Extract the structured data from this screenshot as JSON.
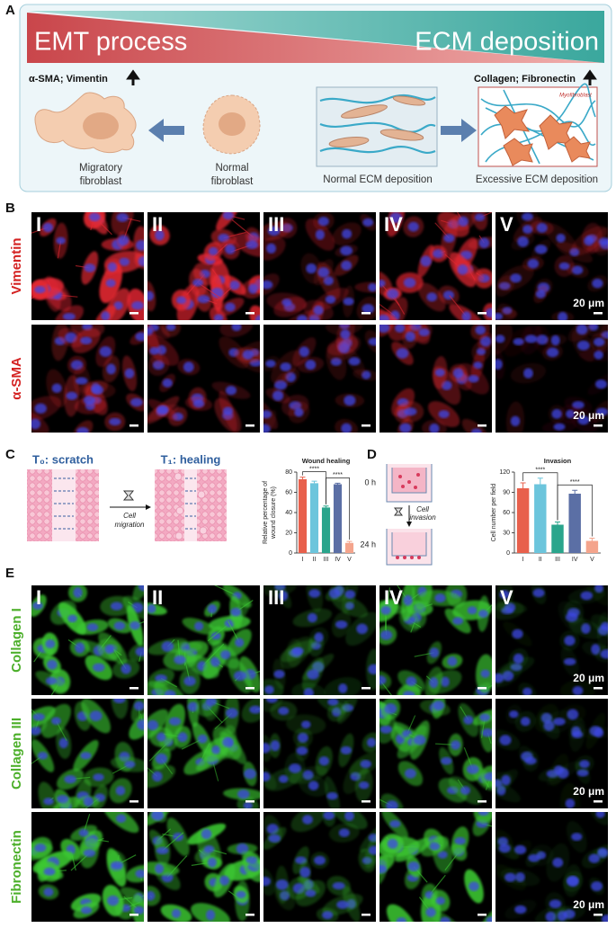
{
  "panel_a": {
    "label": "A",
    "left_banner": "EMT process",
    "right_banner": "ECM deposition",
    "left_markers": "α-SMA; Vimentin",
    "right_markers": "Collagen; Fibronectin",
    "cell_labels": [
      [
        "Migratory",
        "fibroblast"
      ],
      [
        "Normal",
        "fibroblast"
      ]
    ],
    "ecm_labels": [
      "Normal ECM deposition",
      "Excessive ECM deposition"
    ],
    "myofibroblast": "Myofibroblast"
  },
  "panel_b": {
    "label": "B",
    "groups": [
      "I",
      "II",
      "III",
      "IV",
      "V"
    ],
    "stains": [
      "Vimentin",
      "α-SMA"
    ],
    "scale": "20 μm"
  },
  "panel_c": {
    "label": "C",
    "before": "T₀: scratch",
    "after": "T₁: healing",
    "process": [
      "Cell",
      "migration"
    ],
    "chart": {
      "type": "bar",
      "title": "Wound healing",
      "y_label": [
        "Relative percentage of",
        "wound closure (%)"
      ],
      "categories": [
        "I",
        "II",
        "III",
        "IV",
        "V"
      ],
      "values": [
        73,
        69,
        45,
        68,
        10
      ],
      "errors": [
        2,
        2,
        1.5,
        1,
        1.5
      ],
      "colors": [
        "#e8604c",
        "#6cc5dc",
        "#2aa58c",
        "#5b6fa5",
        "#f4a48c"
      ],
      "ylim": [
        0,
        80
      ],
      "yticks": [
        0,
        20,
        40,
        60,
        80
      ],
      "comparisons": [
        {
          "label": "****",
          "bars": [
            "I",
            "III"
          ]
        },
        {
          "label": "****",
          "bars": [
            "III",
            "V"
          ]
        }
      ]
    }
  },
  "panel_d": {
    "label": "D",
    "times": [
      "0 h",
      "24 h"
    ],
    "process": [
      "Cell",
      "invasion"
    ],
    "chart": {
      "type": "bar",
      "title": "Invasion",
      "y_label": [
        "Cell number per field"
      ],
      "categories": [
        "I",
        "II",
        "III",
        "IV",
        "V"
      ],
      "values": [
        96,
        102,
        42,
        88,
        18
      ],
      "errors": [
        8,
        9,
        4,
        5,
        4
      ],
      "colors": [
        "#e8604c",
        "#6cc5dc",
        "#2aa58c",
        "#5b6fa5",
        "#f4a48c"
      ],
      "ylim": [
        0,
        120
      ],
      "yticks": [
        0,
        30,
        60,
        90,
        120
      ],
      "comparisons": [
        {
          "label": "****",
          "bars": [
            "I",
            "III"
          ]
        },
        {
          "label": "****",
          "bars": [
            "III",
            "V"
          ]
        }
      ]
    }
  },
  "panel_e": {
    "label": "E",
    "groups": [
      "I",
      "II",
      "III",
      "IV",
      "V"
    ],
    "stains": [
      "Collagen I",
      "Collagen III",
      "Fibronectin"
    ],
    "scale": "20 μm"
  }
}
